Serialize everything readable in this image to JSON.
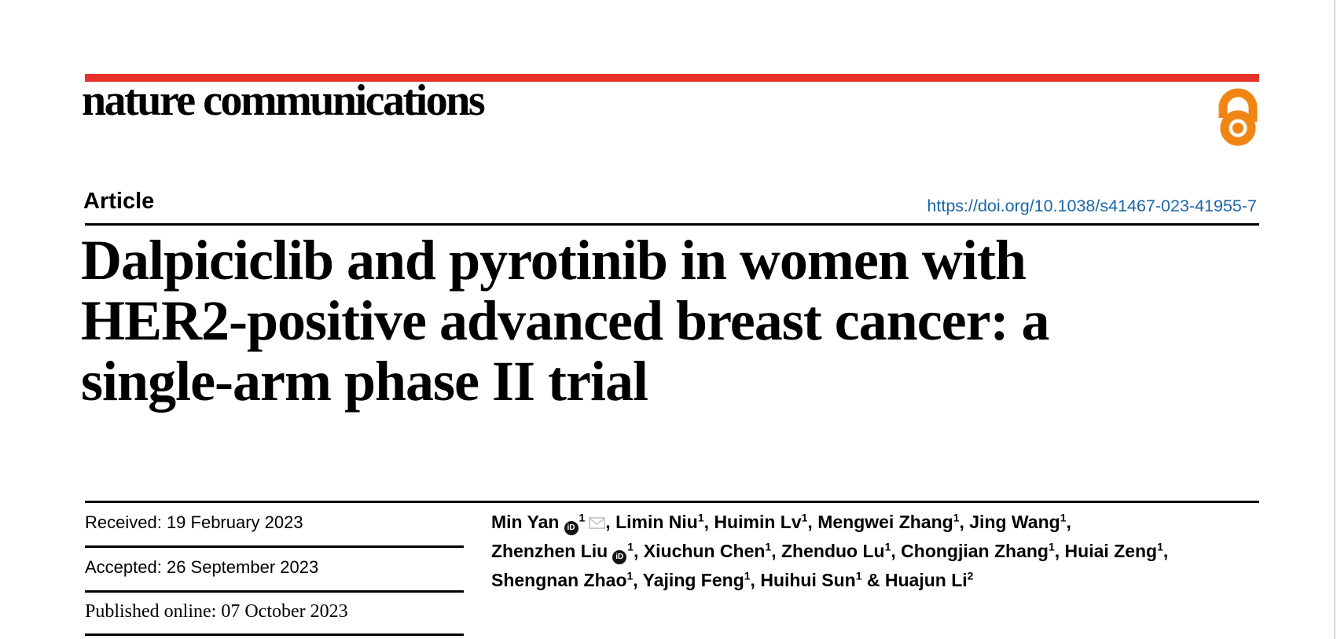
{
  "header": {
    "journal": "nature communications",
    "article_type": "Article",
    "doi": "https://doi.org/10.1038/s41467-023-41955-7"
  },
  "title": {
    "lines": [
      "Dalpiciclib and pyrotinib in women with",
      "HER2-positive advanced breast cancer: a",
      "single-arm phase II trial"
    ]
  },
  "dates": [
    {
      "label": "Received",
      "value": "19 February 2023"
    },
    {
      "label": "Accepted",
      "value": "26 September 2023"
    },
    {
      "label": "Published online",
      "value": "07 October 2023"
    }
  ],
  "authors": {
    "lines": [
      [
        {
          "name": "Min Yan",
          "sup": "1",
          "orcid": true,
          "email": true,
          "after": ", "
        },
        {
          "name": "Limin Niu",
          "sup": "1",
          "after": ", "
        },
        {
          "name": "Huimin Lv",
          "sup": "1",
          "after": ", "
        },
        {
          "name": "Mengwei Zhang",
          "sup": "1",
          "after": ", "
        },
        {
          "name": "Jing Wang",
          "sup": "1",
          "after": ","
        }
      ],
      [
        {
          "name": "Zhenzhen Liu",
          "sup": "1",
          "orcid": true,
          "after": ", "
        },
        {
          "name": "Xiuchun Chen",
          "sup": "1",
          "after": ", "
        },
        {
          "name": "Zhenduo Lu",
          "sup": "1",
          "after": ", "
        },
        {
          "name": "Chongjian Zhang",
          "sup": "1",
          "after": ", "
        },
        {
          "name": "Huiai Zeng",
          "sup": "1",
          "after": ","
        }
      ],
      [
        {
          "name": "Shengnan Zhao",
          "sup": "1",
          "after": ", "
        },
        {
          "name": "Yajing Feng",
          "sup": "1",
          "after": ", "
        },
        {
          "name": "Huihui Sun",
          "sup": "1",
          "after": " & "
        },
        {
          "name": "Huajun Li",
          "sup": "2",
          "after": ""
        }
      ]
    ]
  },
  "icons": {
    "orcid": "orcid-id-icon",
    "orcid_text": "iD",
    "email": "envelope-icon",
    "open_access": "open-access-lock-icon"
  },
  "colors": {
    "brand_red": "#e63228",
    "open_access_orange": "#f08514",
    "link_blue": "#1b66a9",
    "text_black": "#060606",
    "envelope_gray": "#c9c9c9",
    "page_edge_gray": "#d9d9d9"
  }
}
